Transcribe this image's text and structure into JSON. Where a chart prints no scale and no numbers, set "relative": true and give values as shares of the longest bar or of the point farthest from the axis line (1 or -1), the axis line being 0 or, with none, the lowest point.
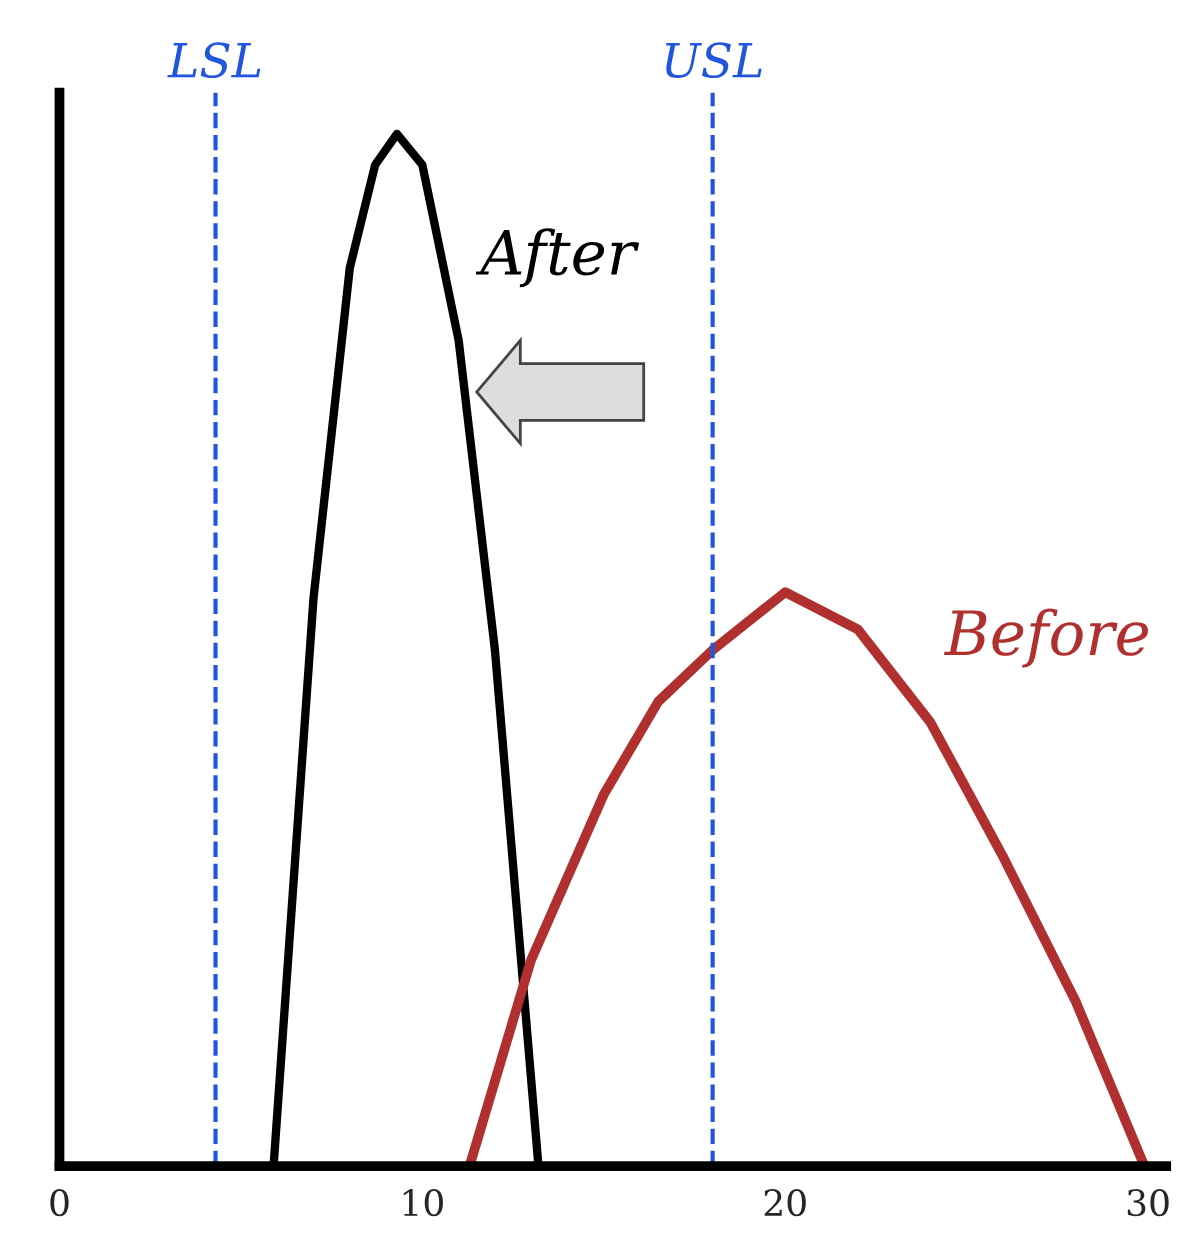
{
  "chart_data": {
    "type": "line",
    "relative": true,
    "xlim": [
      0,
      30.5
    ],
    "xticks": [
      0,
      10,
      20,
      30
    ],
    "grid": false,
    "legend": false,
    "marker": "none",
    "line_style": "solid",
    "series": [
      {
        "name": "After",
        "color": "#000000",
        "x": [
          5.9,
          7,
          8,
          8.7,
          9.3,
          10,
          11,
          12,
          13.2
        ],
        "values": [
          0,
          0.55,
          0.87,
          0.97,
          1,
          0.97,
          0.8,
          0.5,
          0
        ]
      },
      {
        "name": "Before",
        "color": "#b03030",
        "x": [
          11.3,
          13,
          15,
          16.5,
          18,
          20,
          22,
          24,
          26,
          28,
          29.9
        ],
        "values": [
          0,
          0.2,
          0.36,
          0.45,
          0.5,
          0.556,
          0.52,
          0.43,
          0.3,
          0.16,
          0
        ]
      }
    ],
    "ref_lines": [
      {
        "axis": "x",
        "value": 4.3,
        "label": "LSL",
        "color": "#2255dd",
        "line_style": "dashed"
      },
      {
        "axis": "x",
        "value": 18.0,
        "label": "USL",
        "color": "#2255dd",
        "line_style": "dashed"
      }
    ]
  }
}
